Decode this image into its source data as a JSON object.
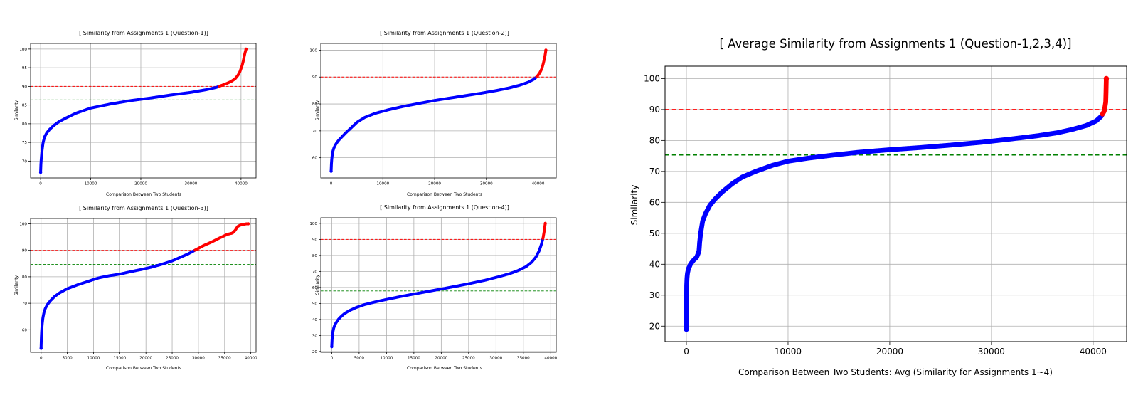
{
  "chart_data": [
    {
      "id": "q1",
      "type": "scatter",
      "title": "[ Similarity from Assignments 1 (Question-1)]",
      "xlabel": "Comparison Between Two Students",
      "ylabel": "Similarity",
      "xlim": [
        -2000,
        43000
      ],
      "ylim": [
        65.5,
        101.5
      ],
      "xticks": [
        0,
        10000,
        20000,
        30000,
        40000
      ],
      "yticks": [
        70,
        75,
        80,
        85,
        90,
        95,
        100
      ],
      "grid": true,
      "thresholds": [
        {
          "value": 90,
          "color": "#ff0000"
        },
        {
          "value": 86.4,
          "color": "#008000"
        }
      ],
      "highlight_above": 90,
      "n_points": 41000,
      "curve_x": [
        0,
        50,
        150,
        300,
        500,
        800,
        1200,
        1800,
        2600,
        3600,
        5000,
        7000,
        10000,
        14000,
        18000,
        22000,
        26000,
        30000,
        33000,
        35000,
        36000,
        37000,
        38000,
        38800,
        39400,
        39800,
        40000,
        40200,
        40400,
        40600,
        40800,
        41000
      ],
      "curve_y": [
        67,
        69,
        71,
        73,
        75,
        76.5,
        77.5,
        78.5,
        79.5,
        80.5,
        81.5,
        82.8,
        84.2,
        85.3,
        86.2,
        86.9,
        87.7,
        88.4,
        89.1,
        89.7,
        90.2,
        90.7,
        91.3,
        92.0,
        93.0,
        94.0,
        94.8,
        95.5,
        96.5,
        97.8,
        99.0,
        100
      ]
    },
    {
      "id": "q2",
      "type": "scatter",
      "title": "[ Similarity from Assignments 1 (Question-2)]",
      "xlabel": "Comparison Between Two Students",
      "ylabel": "Similarity",
      "xlim": [
        -2000,
        43500
      ],
      "ylim": [
        52.5,
        102.5
      ],
      "xticks": [
        0,
        10000,
        20000,
        30000,
        40000
      ],
      "yticks": [
        60,
        70,
        80,
        90,
        100
      ],
      "grid": true,
      "thresholds": [
        {
          "value": 90,
          "color": "#ff0000"
        },
        {
          "value": 80.7,
          "color": "#008000"
        }
      ],
      "highlight_above": 90,
      "n_points": 41500,
      "curve_x": [
        0,
        30,
        100,
        200,
        350,
        550,
        800,
        1100,
        1500,
        2000,
        2800,
        3800,
        5000,
        6500,
        8500,
        11000,
        14000,
        17000,
        20000,
        23000,
        26000,
        29000,
        32000,
        34500,
        36500,
        38000,
        39200,
        39800,
        40300,
        40700,
        41000,
        41300,
        41500
      ],
      "curve_y": [
        55,
        57,
        59,
        61,
        62.5,
        63.7,
        64.7,
        65.6,
        66.6,
        67.6,
        69.2,
        71.0,
        73.2,
        75.0,
        76.5,
        77.8,
        79.1,
        80.2,
        81.3,
        82.2,
        83.1,
        84.0,
        85.0,
        86.0,
        87.0,
        88.0,
        89.2,
        90.2,
        91.5,
        93.0,
        95.0,
        97.5,
        100
      ]
    },
    {
      "id": "q3",
      "type": "scatter",
      "title": "[ Similarity from Assignments 1 (Question-3)]",
      "xlabel": "Comparison Between Two Students",
      "ylabel": "Similarity",
      "xlim": [
        -2000,
        41000
      ],
      "ylim": [
        51.5,
        102.0
      ],
      "xticks": [
        0,
        5000,
        10000,
        15000,
        20000,
        25000,
        30000,
        35000,
        40000
      ],
      "yticks": [
        60,
        70,
        80,
        90,
        100
      ],
      "grid": true,
      "thresholds": [
        {
          "value": 90,
          "color": "#ff0000"
        },
        {
          "value": 84.7,
          "color": "#008000"
        }
      ],
      "highlight_above": 90,
      "n_points": 39500,
      "curve_x": [
        0,
        30,
        100,
        200,
        350,
        550,
        800,
        1200,
        1800,
        2600,
        3600,
        5000,
        7000,
        9000,
        11000,
        13000,
        15000,
        17000,
        19000,
        21000,
        23000,
        25000,
        26500,
        28000,
        29500,
        31000,
        32500,
        34000,
        35500,
        36500,
        37000,
        37500,
        38000,
        38600,
        39200,
        39500
      ],
      "curve_y": [
        53,
        56,
        59,
        62,
        64.5,
        66.5,
        68,
        69.5,
        71,
        72.6,
        74,
        75.5,
        77,
        78.3,
        79.6,
        80.4,
        81,
        81.9,
        82.7,
        83.6,
        84.7,
        86,
        87.3,
        88.6,
        90.2,
        91.8,
        93.1,
        94.6,
        96,
        96.5,
        97.5,
        99,
        99.5,
        99.8,
        100,
        100
      ]
    },
    {
      "id": "q4",
      "type": "scatter",
      "title": "[ Similarity from Assignments 1 (Question-4)]",
      "xlabel": "Comparison Between Two Students",
      "ylabel": "Similarity",
      "xlim": [
        -2000,
        41000
      ],
      "ylim": [
        19.5,
        103.5
      ],
      "xticks": [
        0,
        5000,
        10000,
        15000,
        20000,
        25000,
        30000,
        35000,
        40000
      ],
      "yticks": [
        20,
        30,
        40,
        50,
        60,
        70,
        80,
        90,
        100
      ],
      "grid": true,
      "thresholds": [
        {
          "value": 90,
          "color": "#ff0000"
        },
        {
          "value": 57.8,
          "color": "#008000"
        }
      ],
      "highlight_above": 90,
      "n_points": 39000,
      "curve_x": [
        0,
        30,
        100,
        200,
        350,
        550,
        800,
        1200,
        1700,
        2300,
        3200,
        4500,
        6000,
        8000,
        10000,
        13000,
        16000,
        19000,
        22000,
        25000,
        28000,
        30500,
        32500,
        34000,
        35500,
        36500,
        37300,
        37900,
        38300,
        38600,
        38800,
        39000
      ],
      "curve_y": [
        23,
        26,
        29,
        32,
        34.5,
        36.5,
        38,
        40,
        41.8,
        43.6,
        45.5,
        47.5,
        49.3,
        51,
        52.5,
        54.6,
        56.5,
        58.4,
        60.3,
        62.3,
        64.5,
        66.7,
        68.6,
        70.5,
        73,
        75.7,
        79,
        83,
        87,
        91,
        95,
        100
      ]
    },
    {
      "id": "avg",
      "type": "scatter",
      "title": "[ Average Similarity from Assignments 1 (Question-1,2,3,4)]",
      "xlabel": "Comparison Between Two Students: Avg (Similarity for Assignments 1~4)",
      "ylabel": "Similarity",
      "xlim": [
        -2100,
        43300
      ],
      "ylim": [
        15,
        104
      ],
      "xticks": [
        0,
        10000,
        20000,
        30000,
        40000
      ],
      "yticks": [
        20,
        30,
        40,
        50,
        60,
        70,
        80,
        90,
        100
      ],
      "grid": true,
      "thresholds": [
        {
          "value": 90,
          "color": "#ff0000"
        },
        {
          "value": 75.3,
          "color": "#008000"
        }
      ],
      "highlight_above": 88.5,
      "n_points": 41300,
      "curve_x": [
        0,
        5,
        15,
        30,
        60,
        100,
        200,
        400,
        700,
        1000,
        1150,
        1250,
        1300,
        1400,
        1600,
        1900,
        2300,
        2800,
        3500,
        4500,
        5500,
        6800,
        8500,
        10000,
        12000,
        14500,
        17000,
        20000,
        23000,
        26000,
        29000,
        32000,
        34500,
        36500,
        38000,
        39300,
        40300,
        40800,
        41100,
        41250,
        41300
      ],
      "curve_y": [
        19,
        21,
        22,
        34,
        35.5,
        37,
        38.5,
        40,
        41.3,
        42.2,
        43.4,
        44.5,
        47,
        50,
        54,
        56.5,
        59,
        61,
        63.3,
        66,
        68.2,
        70,
        72,
        73.3,
        74.3,
        75.3,
        76.2,
        77,
        77.7,
        78.5,
        79.4,
        80.5,
        81.5,
        82.5,
        83.6,
        84.8,
        86.3,
        87.8,
        89.5,
        92.5,
        100
      ]
    }
  ]
}
